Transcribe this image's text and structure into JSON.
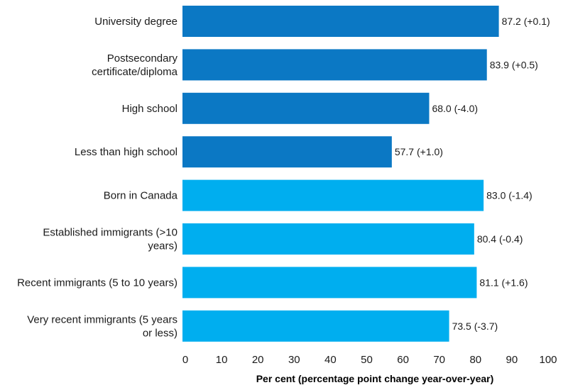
{
  "chart_data": {
    "type": "bar",
    "orientation": "horizontal",
    "categories": [
      [
        "University degree"
      ],
      [
        "Postsecondary",
        "certificate/diploma"
      ],
      [
        "High school"
      ],
      [
        "Less than high school"
      ],
      [
        "Born in Canada"
      ],
      [
        "Established immigrants (>10",
        "years)"
      ],
      [
        "Recent immigrants (5 to 10 years)"
      ],
      [
        "Very recent immigrants (5 years",
        "or less)"
      ]
    ],
    "values": [
      87.2,
      83.9,
      68.0,
      57.7,
      83.0,
      80.4,
      81.1,
      73.5
    ],
    "data_labels": [
      "87.2 (+0.1)",
      "83.9 (+0.5)",
      "68.0 (-4.0)",
      "57.7 (+1.0)",
      "83.0 (-1.4)",
      "80.4 (-0.4)",
      "81.1 (+1.6)",
      "73.5 (-3.7)"
    ],
    "bar_colors": [
      "#0b78c4",
      "#0b78c4",
      "#0b78c4",
      "#0b78c4",
      "#00aeef",
      "#00aeef",
      "#00aeef",
      "#00aeef"
    ],
    "xlim": [
      0,
      100
    ],
    "xticks": [
      0,
      10,
      20,
      30,
      40,
      50,
      60,
      70,
      80,
      90,
      100
    ],
    "xlabel": "Per cent (percentage point change year-over-year)",
    "grid": false,
    "legend": "none"
  }
}
